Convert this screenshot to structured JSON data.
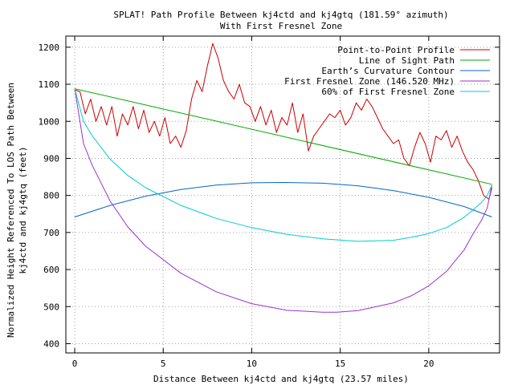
{
  "chart_data": {
    "type": "line",
    "title": "SPLAT! Path Profile Between kj4ctd and kj4gtq (181.59° azimuth)",
    "subtitle": "With First Fresnel Zone",
    "xlabel": "Distance Between kj4ctd and kj4gtq (23.57 miles)",
    "ylabel_line1": "Normalized Height Referenced To LOS Path Between",
    "ylabel_line2": "kj4ctd and kj4gtq (feet)",
    "xlim": [
      -0.5,
      24
    ],
    "ylim": [
      375,
      1230
    ],
    "x_ticks": [
      0,
      5,
      10,
      15,
      20
    ],
    "y_ticks": [
      400,
      500,
      600,
      700,
      800,
      900,
      1000,
      1100,
      1200
    ],
    "grid": true,
    "legend_position": "top-right",
    "series": [
      {
        "name": "Point-to-Point Profile",
        "color": "#cc0000",
        "x": [
          0.0,
          0.3,
          0.6,
          0.9,
          1.2,
          1.5,
          1.8,
          2.1,
          2.4,
          2.7,
          3.0,
          3.3,
          3.6,
          3.9,
          4.2,
          4.5,
          4.8,
          5.1,
          5.4,
          5.7,
          6.0,
          6.3,
          6.6,
          6.9,
          7.2,
          7.5,
          7.8,
          8.1,
          8.4,
          8.7,
          9.0,
          9.3,
          9.6,
          9.9,
          10.2,
          10.5,
          10.8,
          11.1,
          11.4,
          11.7,
          12.0,
          12.3,
          12.6,
          12.9,
          13.2,
          13.5,
          13.8,
          14.1,
          14.4,
          14.7,
          15.0,
          15.3,
          15.6,
          15.9,
          16.2,
          16.5,
          16.8,
          17.1,
          17.4,
          17.7,
          18.0,
          18.3,
          18.6,
          18.9,
          19.2,
          19.5,
          19.8,
          20.1,
          20.4,
          20.7,
          21.0,
          21.3,
          21.6,
          21.9,
          22.2,
          22.5,
          22.8,
          23.1,
          23.4,
          23.57
        ],
        "y": [
          1085,
          1080,
          1020,
          1060,
          1000,
          1040,
          990,
          1040,
          960,
          1020,
          990,
          1040,
          980,
          1030,
          970,
          1000,
          960,
          1010,
          940,
          960,
          930,
          975,
          1060,
          1110,
          1080,
          1150,
          1210,
          1170,
          1110,
          1080,
          1060,
          1100,
          1050,
          1040,
          1000,
          1040,
          990,
          1030,
          970,
          1010,
          990,
          1050,
          970,
          1020,
          920,
          960,
          980,
          1000,
          1020,
          1010,
          1030,
          990,
          1010,
          1050,
          1030,
          1060,
          1040,
          1010,
          980,
          960,
          940,
          950,
          900,
          880,
          930,
          970,
          940,
          890,
          960,
          950,
          975,
          930,
          960,
          920,
          890,
          870,
          840,
          800,
          790,
          820
        ]
      },
      {
        "name": "Line of Sight Path",
        "color": "#00aa00",
        "x": [
          0,
          23.57
        ],
        "y": [
          1088,
          830
        ]
      },
      {
        "name": "Earth’s Curvature Contour",
        "color": "#0066cc",
        "x": [
          0,
          2,
          4,
          6,
          8,
          10,
          11.785,
          14,
          16,
          18,
          20,
          22,
          23.57
        ],
        "y": [
          742,
          773,
          798,
          816,
          828,
          834,
          835,
          833,
          826,
          813,
          795,
          770,
          742
        ]
      },
      {
        "name": "First Fresnel Zone (146.520 MHz)",
        "color": "#9933cc",
        "x": [
          0,
          0.5,
          1,
          2,
          3,
          4,
          6,
          8,
          10,
          12,
          14,
          14.8,
          16,
          18,
          19,
          20,
          21,
          22,
          22.5,
          23,
          23.3,
          23.57
        ],
        "y": [
          1088,
          940,
          880,
          785,
          715,
          663,
          590,
          540,
          508,
          490,
          485,
          485,
          489,
          510,
          529,
          556,
          595,
          653,
          696,
          735,
          766,
          828
        ]
      },
      {
        "name": "60% of First Fresnel Zone",
        "color": "#00cccc",
        "x": [
          0,
          0.5,
          1,
          2,
          3,
          4,
          6,
          8,
          10,
          12,
          14,
          16,
          18,
          19,
          20,
          21,
          22,
          22.5,
          23,
          23.3,
          23.57
        ],
        "y": [
          1088,
          1000,
          960,
          898,
          854,
          821,
          773,
          738,
          713,
          695,
          683,
          676,
          679,
          687,
          697,
          713,
          741,
          761,
          782,
          800,
          828
        ]
      }
    ]
  }
}
